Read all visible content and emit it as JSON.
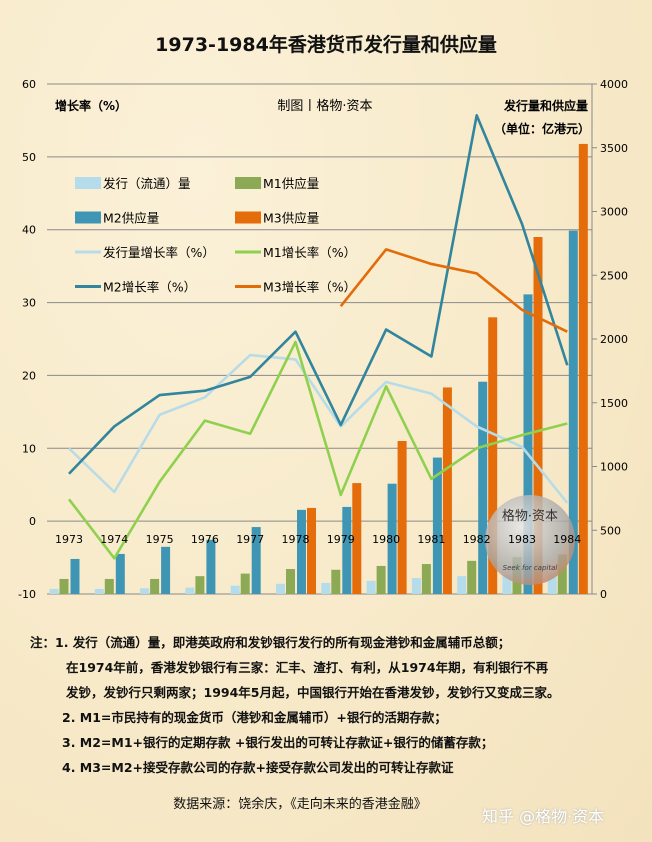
{
  "title": "1973-1984年香港货币发行量和供应量",
  "chart_data": {
    "type": "bar+line",
    "title": "1973-1984年香港货币发行量和供应量",
    "credit": "制图丨格物·资本",
    "ylabel_left": "增长率（%）",
    "ylabel_right": "发行量和供应量",
    "ylabel_right_unit": "（单位：亿港元）",
    "ylim_left": [
      -10,
      60
    ],
    "ylim_right": [
      0,
      4000
    ],
    "yticks_left": [
      60,
      50,
      40,
      30,
      20,
      10,
      0,
      -10
    ],
    "yticks_right": [
      4000,
      3500,
      3000,
      2500,
      2000,
      1500,
      1000,
      500,
      0
    ],
    "grid": true,
    "legend_position": "top-left",
    "categories": [
      "1973",
      "1974",
      "1975",
      "1976",
      "1977",
      "1978",
      "1979",
      "1980",
      "1981",
      "1982",
      "1983",
      "1984"
    ],
    "bar_series": [
      {
        "name": "发行（流通）量",
        "color": "#b4dcea",
        "axis": "right",
        "values": [
          40,
          40,
          45,
          50,
          65,
          80,
          87,
          103,
          125,
          140,
          150,
          160
        ]
      },
      {
        "name": "M1供应量",
        "color": "#8caa55",
        "axis": "right",
        "values": [
          118,
          118,
          118,
          140,
          160,
          196,
          190,
          220,
          235,
          260,
          290,
          310
        ]
      },
      {
        "name": "M2供应量",
        "color": "#3f96b4",
        "axis": "right",
        "values": [
          275,
          314,
          370,
          425,
          525,
          660,
          683,
          865,
          1070,
          1665,
          2350,
          2850
        ]
      },
      {
        "name": "M3供应量",
        "color": "#e46c0a",
        "axis": "right",
        "values": [
          null,
          null,
          null,
          null,
          null,
          675,
          870,
          1200,
          1620,
          2170,
          2800,
          3530
        ]
      }
    ],
    "line_series": [
      {
        "name": "发行量增长率（%）",
        "color": "#b7dce8",
        "axis": "left",
        "values": [
          10,
          4,
          14.6,
          17,
          22.8,
          22.2,
          13,
          19.1,
          17.5,
          13,
          10.2,
          2.5
        ]
      },
      {
        "name": "M1增长率（%）",
        "color": "#8fd14f",
        "axis": "left",
        "values": [
          3,
          -5.1,
          5.4,
          13.8,
          12,
          24.6,
          3.6,
          18.5,
          5.8,
          10,
          11.8,
          13.4
        ]
      },
      {
        "name": "M2增长率（%）",
        "color": "#31859c",
        "axis": "left",
        "values": [
          6.5,
          13,
          17.3,
          17.9,
          19.8,
          26,
          13.2,
          26.3,
          22.6,
          55.7,
          40.8,
          21.4
        ]
      },
      {
        "name": "M3增长率（%）",
        "color": "#e36c0a",
        "axis": "left",
        "values": [
          null,
          null,
          null,
          null,
          null,
          null,
          29.5,
          37.3,
          35.3,
          34,
          29,
          26
        ]
      }
    ]
  },
  "watermark": {
    "seal_text": "格物·资本",
    "seal_subtext": "Seek for capital",
    "site": "知乎 @格物·资本"
  },
  "notes": [
    "注：1. 发行（流通）量，即港英政府和发钞银行发行的所有现金港钞和金属辅币总额；",
    "在1974年前，香港发钞银行有三家：汇丰、渣打、有利，从1974年期，有利银行不再",
    "发钞，发钞行只剩两家；1994年5月起，中国银行开始在香港发钞，发钞行又变成三家。",
    "2. M1=市民持有的现金货币（港钞和金属辅币）+银行的活期存款；",
    "3. M2=M1+银行的定期存款 +银行发出的可转让存款证+银行的储蓄存款；",
    "4. M3=M2+接受存款公司的存款+接受存款公司发出的可转让存款证"
  ],
  "source": "数据来源：饶余庆，《走向未来的香港金融》"
}
